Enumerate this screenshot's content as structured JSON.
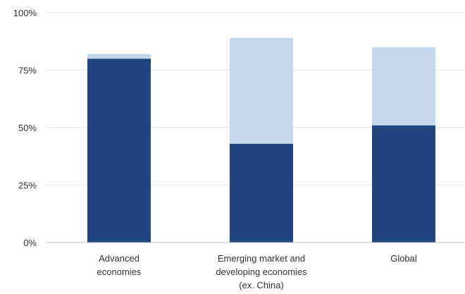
{
  "chart_data": {
    "type": "bar",
    "stacked": true,
    "categories": [
      [
        "Advanced",
        "economies"
      ],
      [
        "Emerging market and",
        "developing economies",
        "(ex. China)"
      ],
      [
        "Global"
      ]
    ],
    "series": [
      {
        "values": [
          80,
          43,
          51
        ],
        "color": "#21457f"
      },
      {
        "values": [
          2,
          46,
          34
        ],
        "color": "#c3d8ec"
      }
    ],
    "ylim": [
      0,
      100
    ],
    "yticks": [
      0,
      25,
      50,
      75,
      100
    ],
    "ytick_labels": [
      "0%",
      "25%",
      "50%",
      "75%",
      "100%"
    ],
    "grid": true,
    "legend": "none"
  }
}
